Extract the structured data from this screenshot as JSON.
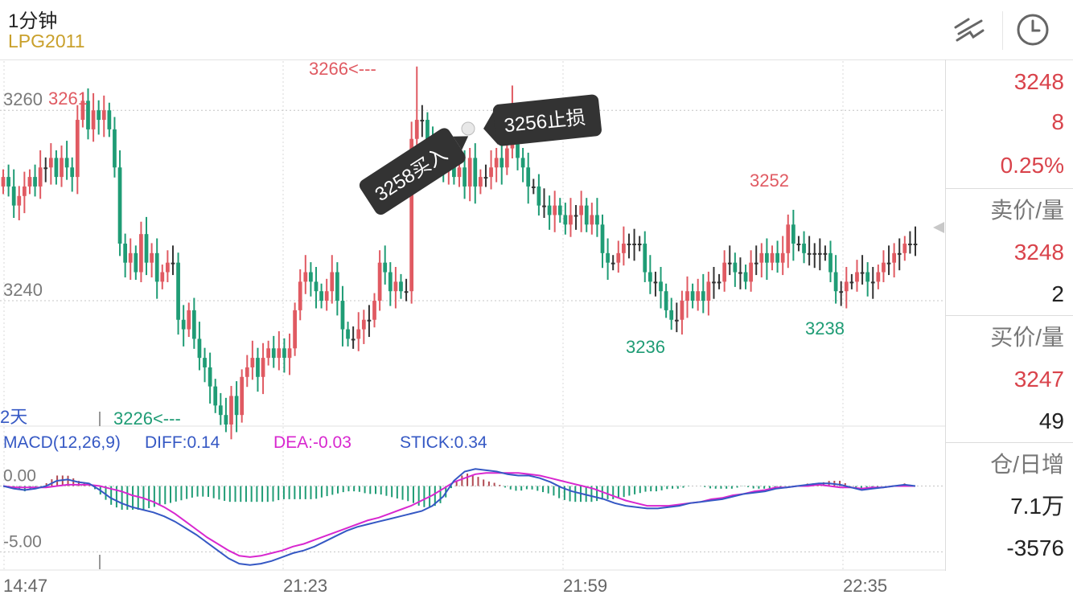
{
  "header": {
    "period": "1分钟",
    "symbol": "LPG2011"
  },
  "icons": {
    "draw": "draw-line-icon",
    "clock": "clock-icon"
  },
  "colors": {
    "up": "#e05a62",
    "down": "#1f9c75",
    "flat": "#333333",
    "diff": "#3558c4",
    "dea": "#d827cf",
    "accent": "#c9a02b"
  },
  "chart_data": [
    {
      "type": "candlestick",
      "price_axis": {
        "ticks": [
          3260,
          3240
        ],
        "ylim": [
          3227,
          3265
        ]
      },
      "time_axis": {
        "labels": [
          "14:47",
          "21:23",
          "21:59",
          "22:35"
        ]
      },
      "annotations": {
        "high_label": "3266<---",
        "low_label": "3226<---",
        "local_labels": [
          "3261",
          "3236",
          "3252",
          "3238"
        ],
        "span_label": "2天",
        "buy_tag": "3258买入",
        "stop_tag": "3256止损"
      },
      "close": [
        3253,
        3252,
        3250,
        3251,
        3252,
        3253,
        3252,
        3254,
        3254,
        3255,
        3253,
        3255,
        3254,
        3253,
        3259,
        3261,
        3258,
        3260,
        3259,
        3260,
        3258,
        3254,
        3246,
        3244,
        3245,
        3243,
        3247,
        3244,
        3245,
        3242,
        3243,
        3244,
        3244,
        3238,
        3237,
        3239,
        3236,
        3234,
        3233,
        3231,
        3229,
        3228,
        3227,
        3230,
        3228,
        3232,
        3233,
        3234,
        3232,
        3234,
        3235,
        3234,
        3235,
        3234,
        3235,
        3239,
        3242,
        3243,
        3242,
        3241,
        3240,
        3241,
        3243,
        3240,
        3237,
        3236,
        3236,
        3237,
        3238,
        3238,
        3240,
        3244,
        3243,
        3241,
        3242,
        3241,
        3241,
        3257,
        3259,
        3259,
        3257,
        3255,
        3256,
        3254,
        3256,
        3253,
        3254,
        3252,
        3255,
        3252,
        3253,
        3253,
        3254,
        3255,
        3254,
        3256,
        3258,
        3255,
        3254,
        3252,
        3252,
        3250,
        3250,
        3249,
        3250,
        3249,
        3248,
        3249,
        3249,
        3250,
        3248,
        3249,
        3248,
        3245,
        3244,
        3244,
        3245,
        3246,
        3246,
        3246,
        3246,
        3243,
        3242,
        3242,
        3241,
        3239,
        3238,
        3238,
        3240,
        3241,
        3240,
        3241,
        3240,
        3242,
        3242,
        3242,
        3244,
        3244,
        3243,
        3243,
        3242,
        3244,
        3244,
        3245,
        3244,
        3245,
        3244,
        3245,
        3248,
        3246,
        3246,
        3245,
        3245,
        3245,
        3245,
        3245,
        3243,
        3241,
        3241,
        3242,
        3242,
        3243,
        3243,
        3242,
        3242,
        3243,
        3244,
        3244,
        3245,
        3245,
        3246,
        3246,
        3246
      ],
      "macd": {
        "label": "MACD(12,26,9)",
        "diff_label": "DIFF:0.14",
        "dea_label": "DEA:-0.03",
        "stick_label": "STICK:0.34",
        "y_ticks": [
          "0.00",
          "-5.00"
        ],
        "y_tick_values": [
          0,
          -5
        ],
        "ylim": [
          -6.2,
          2.6
        ],
        "diff": [
          0,
          -0.2,
          -0.3,
          -0.2,
          0,
          0.4,
          0.5,
          0.3,
          0.2,
          -0.3,
          -0.9,
          -1.3,
          -1.6,
          -1.8,
          -2.0,
          -2.3,
          -2.7,
          -3.2,
          -3.7,
          -4.3,
          -4.9,
          -5.5,
          -5.9,
          -6.0,
          -5.9,
          -5.7,
          -5.4,
          -5.1,
          -4.9,
          -4.6,
          -4.2,
          -3.8,
          -3.4,
          -3.1,
          -2.9,
          -2.7,
          -2.5,
          -2.3,
          -2.1,
          -1.9,
          -1.5,
          -0.8,
          0.4,
          1.1,
          1.3,
          1.2,
          1.1,
          0.9,
          0.8,
          0.8,
          0.6,
          0.3,
          -0.1,
          -0.4,
          -0.6,
          -0.8,
          -1.0,
          -1.3,
          -1.5,
          -1.6,
          -1.7,
          -1.7,
          -1.6,
          -1.5,
          -1.3,
          -1.2,
          -1.1,
          -1.0,
          -0.8,
          -0.6,
          -0.5,
          -0.4,
          -0.2,
          -0.1,
          0,
          0.1,
          0.2,
          0.2,
          0.1,
          -0.1,
          -0.3,
          -0.2,
          -0.1,
          0,
          0.1,
          0
        ],
        "dea": [
          0,
          -0.1,
          -0.1,
          -0.1,
          -0.1,
          0,
          0.1,
          0.1,
          0.1,
          0,
          -0.2,
          -0.4,
          -0.7,
          -0.9,
          -1.2,
          -1.6,
          -2.1,
          -2.7,
          -3.3,
          -3.9,
          -4.4,
          -4.9,
          -5.3,
          -5.4,
          -5.3,
          -5.1,
          -4.9,
          -4.6,
          -4.4,
          -4.1,
          -3.8,
          -3.5,
          -3.2,
          -2.9,
          -2.6,
          -2.4,
          -2.1,
          -1.8,
          -1.5,
          -1.1,
          -0.7,
          -0.2,
          0.3,
          0.6,
          0.9,
          1.0,
          1.0,
          1.0,
          1.0,
          0.9,
          0.8,
          0.6,
          0.4,
          0.2,
          0,
          -0.2,
          -0.5,
          -0.8,
          -1.1,
          -1.3,
          -1.5,
          -1.5,
          -1.5,
          -1.4,
          -1.3,
          -1.2,
          -1.0,
          -0.9,
          -0.7,
          -0.6,
          -0.4,
          -0.3,
          -0.1,
          -0.1,
          0,
          0,
          0.1,
          0,
          -0.1,
          -0.1,
          -0.2,
          -0.1,
          -0.1,
          0,
          0,
          0
        ]
      }
    }
  ],
  "panel": {
    "last_price": "3248",
    "change": "8",
    "change_pct": "0.25%",
    "ask_label": "卖价/量",
    "ask_price": "3248",
    "ask_vol": "2",
    "bid_label": "买价/量",
    "bid_price": "3247",
    "bid_vol": "49",
    "oi_label": "仓/日增",
    "oi_value": "7.1万",
    "oi_change": "-3576"
  }
}
